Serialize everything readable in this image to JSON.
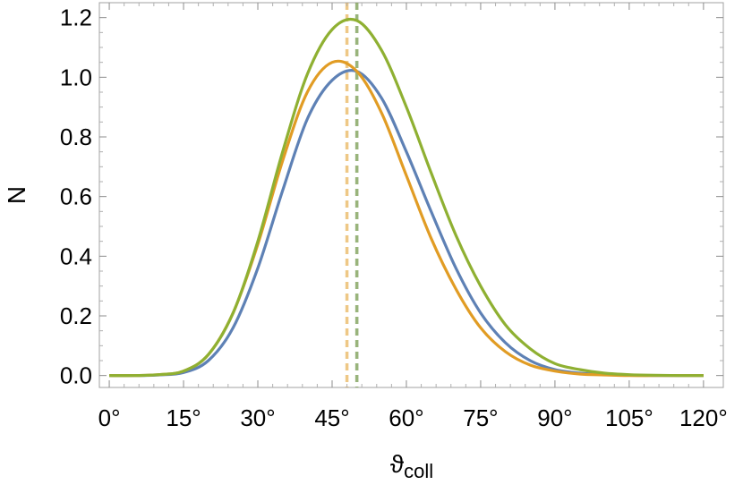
{
  "chart_data": {
    "type": "line",
    "title": "",
    "xlabel_main": "ϑ",
    "xlabel_sub": "coll",
    "ylabel": "N",
    "xlim": [
      -2,
      124
    ],
    "ylim": [
      -0.04,
      1.25
    ],
    "x_ticks": [
      0,
      15,
      30,
      45,
      60,
      75,
      90,
      105,
      120
    ],
    "x_tick_labels": [
      "0°",
      "15°",
      "30°",
      "45°",
      "60°",
      "75°",
      "90°",
      "105°",
      "120°"
    ],
    "y_ticks": [
      0.0,
      0.2,
      0.4,
      0.6,
      0.8,
      1.0,
      1.2
    ],
    "y_tick_labels": [
      "0.0",
      "0.2",
      "0.4",
      "0.6",
      "0.8",
      "1.0",
      "1.2"
    ],
    "grid": false,
    "x": [
      0,
      5,
      10,
      15,
      20,
      25,
      30,
      35,
      40,
      45,
      50,
      55,
      60,
      65,
      70,
      75,
      80,
      85,
      90,
      95,
      100,
      105,
      110,
      115,
      120
    ],
    "series": [
      {
        "color": "#5e81b5",
        "values": [
          0.0,
          0.0,
          0.002,
          0.01,
          0.05,
          0.16,
          0.36,
          0.62,
          0.86,
          0.99,
          1.02,
          0.93,
          0.75,
          0.55,
          0.36,
          0.21,
          0.11,
          0.05,
          0.02,
          0.008,
          0.003,
          0.001,
          0.0,
          0.0,
          0.0
        ],
        "peak_x": 50
      },
      {
        "color": "#e19c24",
        "values": [
          0.0,
          0.0,
          0.003,
          0.015,
          0.07,
          0.21,
          0.44,
          0.72,
          0.95,
          1.05,
          1.02,
          0.88,
          0.67,
          0.46,
          0.29,
          0.16,
          0.08,
          0.035,
          0.015,
          0.005,
          0.002,
          0.0,
          0.0,
          0.0,
          0.0
        ],
        "peak_x": 48
      },
      {
        "color": "#8fb032",
        "values": [
          0.0,
          0.0,
          0.003,
          0.015,
          0.07,
          0.21,
          0.45,
          0.75,
          1.01,
          1.16,
          1.19,
          1.09,
          0.9,
          0.68,
          0.47,
          0.3,
          0.17,
          0.09,
          0.04,
          0.02,
          0.008,
          0.003,
          0.001,
          0.0,
          0.0
        ],
        "peak_x": 50
      }
    ]
  }
}
